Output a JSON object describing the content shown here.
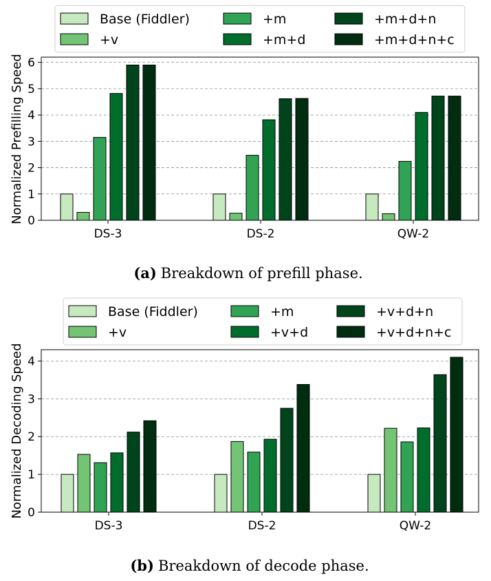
{
  "colors": [
    "#c7e9c0",
    "#74c476",
    "#31a354",
    "#006d2c",
    "#00441b",
    "#002d10"
  ],
  "chart_data": [
    {
      "type": "bar",
      "categories": [
        "DS-3",
        "DS-2",
        "QW-2"
      ],
      "series": [
        {
          "name": "Base (Fiddler)",
          "values": [
            1.0,
            1.0,
            1.0
          ]
        },
        {
          "name": "+v",
          "values": [
            0.3,
            0.27,
            0.25
          ]
        },
        {
          "name": "+m",
          "values": [
            3.15,
            2.47,
            2.24
          ]
        },
        {
          "name": "+m+d",
          "values": [
            4.82,
            3.82,
            4.1
          ]
        },
        {
          "name": "+m+d+n",
          "values": [
            5.9,
            4.62,
            4.72
          ]
        },
        {
          "name": "+m+d+n+c",
          "values": [
            5.9,
            4.63,
            4.72
          ]
        }
      ],
      "ylabel": "Normalized Prefilling Speed",
      "yticks": [
        0,
        1,
        2,
        3,
        4,
        5,
        6
      ],
      "ylim": [
        0,
        6.2
      ],
      "grid": true,
      "legend_position": "top",
      "caption_label": "(a)",
      "caption_text": "Breakdown of prefill phase."
    },
    {
      "type": "bar",
      "categories": [
        "DS-3",
        "DS-2",
        "QW-2"
      ],
      "series": [
        {
          "name": "Base (Fiddler)",
          "values": [
            1.0,
            1.0,
            1.0
          ]
        },
        {
          "name": "+v",
          "values": [
            1.53,
            1.87,
            2.22
          ]
        },
        {
          "name": "+m",
          "values": [
            1.31,
            1.59,
            1.86
          ]
        },
        {
          "name": "+v+d",
          "values": [
            1.57,
            1.93,
            2.23
          ]
        },
        {
          "name": "+v+d+n",
          "values": [
            2.12,
            2.75,
            3.64
          ]
        },
        {
          "name": "+v+d+n+c",
          "values": [
            2.42,
            3.38,
            4.1
          ]
        }
      ],
      "ylabel": "Normalized Decoding Speed",
      "yticks": [
        0,
        1,
        2,
        3,
        4
      ],
      "ylim": [
        0,
        4.3
      ],
      "grid": true,
      "legend_position": "top",
      "caption_label": "(b)",
      "caption_text": "Breakdown of decode phase."
    }
  ]
}
